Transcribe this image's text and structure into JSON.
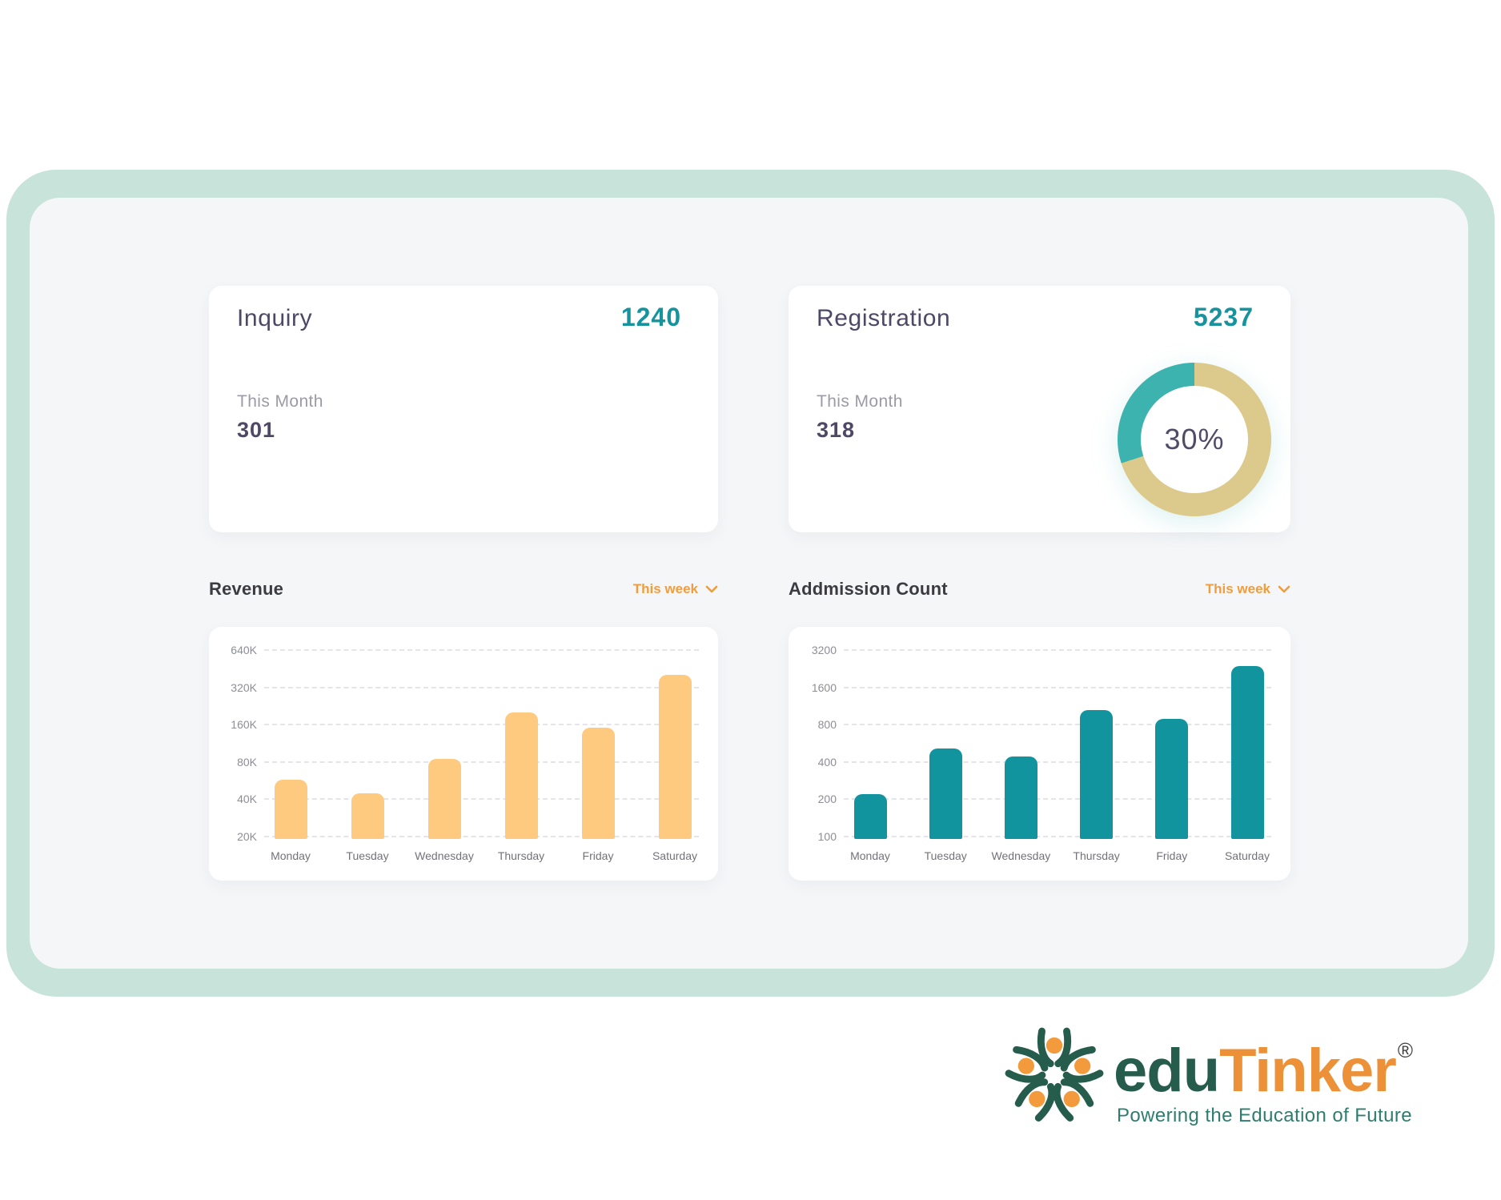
{
  "theme": {
    "frame_mint": "#c7e3da",
    "panel_gray": "#f5f6f8",
    "card_white": "#ffffff",
    "accent_teal": "#17939d",
    "accent_orange": "#ef9d3e",
    "title_purple": "#4e4766",
    "muted_gray": "#9b9ba6"
  },
  "summary_cards": {
    "inquiry": {
      "title": "Inquiry",
      "total": "1240",
      "period_label": "This Month",
      "period_value": "301"
    },
    "registration": {
      "title": "Registration",
      "total": "5237",
      "period_label": "This Month",
      "period_value": "318",
      "donut": {
        "percent": 30,
        "center_label": "30%",
        "segment_color": "#3cb3ae",
        "track_color": "#dcca8c"
      }
    }
  },
  "sections": {
    "revenue": {
      "title": "Revenue",
      "filter": "This week"
    },
    "admission": {
      "title": "Addmission Count",
      "filter": "This week"
    }
  },
  "chart_data": [
    {
      "id": "revenue",
      "type": "bar",
      "title": "Revenue",
      "period": "This week",
      "categories": [
        "Monday",
        "Tuesday",
        "Wednesday",
        "Thursday",
        "Friday",
        "Saturday"
      ],
      "values": [
        60000,
        47000,
        88000,
        210000,
        158000,
        420000
      ],
      "yticks": [
        {
          "label": "640K",
          "value": 640000
        },
        {
          "label": "320K",
          "value": 320000
        },
        {
          "label": "160K",
          "value": 160000
        },
        {
          "label": "80K",
          "value": 80000
        },
        {
          "label": "40K",
          "value": 40000
        },
        {
          "label": "20K",
          "value": 20000
        }
      ],
      "scale": "log2",
      "grid": "dashed-horizontal",
      "bar_color": "#fdca80",
      "ylim": [
        20000,
        640000
      ]
    },
    {
      "id": "admission_count",
      "type": "bar",
      "title": "Addmission Count",
      "period": "This week",
      "categories": [
        "Monday",
        "Tuesday",
        "Wednesday",
        "Thursday",
        "Friday",
        "Saturday"
      ],
      "values": [
        230,
        540,
        460,
        1100,
        930,
        2500
      ],
      "yticks": [
        {
          "label": "3200",
          "value": 3200
        },
        {
          "label": "1600",
          "value": 1600
        },
        {
          "label": "800",
          "value": 800
        },
        {
          "label": "400",
          "value": 400
        },
        {
          "label": "200",
          "value": 200
        },
        {
          "label": "100",
          "value": 100
        }
      ],
      "scale": "log2",
      "grid": "dashed-horizontal",
      "bar_color": "#12949e",
      "ylim": [
        100,
        3200
      ]
    }
  ],
  "logo": {
    "brand_primary": "edu",
    "brand_secondary": "Tinker",
    "registered_mark": "®",
    "tagline": "Powering the Education of Future",
    "mark_green": "#265c4b",
    "mark_orange": "#f39b3c"
  }
}
